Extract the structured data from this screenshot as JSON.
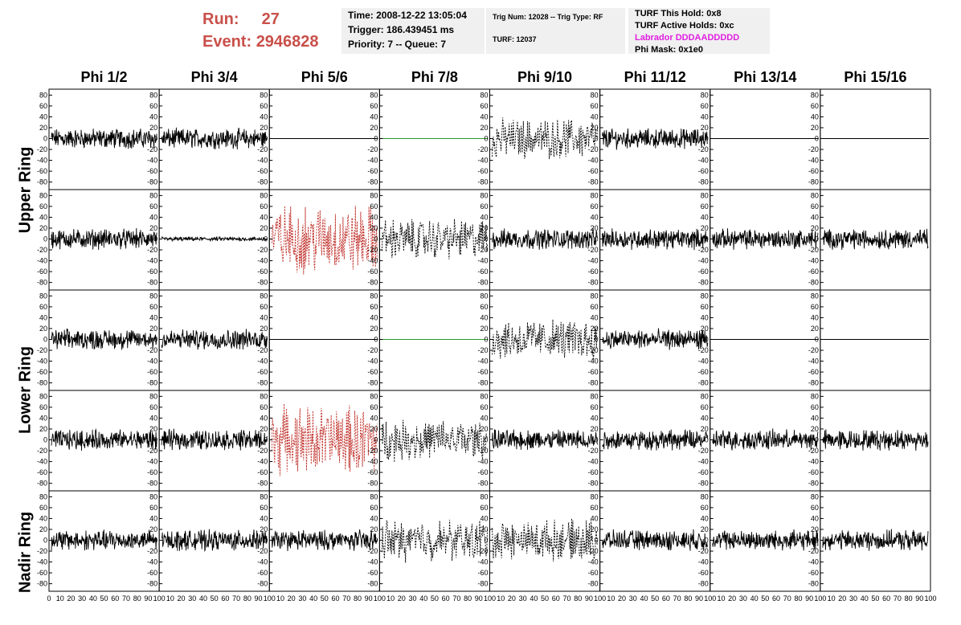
{
  "header": {
    "run_label": "Run:",
    "run_value": "27",
    "event_label": "Event:",
    "event_value": "2946828"
  },
  "info1": {
    "time": "Time: 2008-12-22 13:05:04",
    "trigger": "Trigger: 186.439451 ms",
    "priority": "Priority: 7 -- Queue: 7"
  },
  "info2": {
    "trig": "Trig Num: 12028 -- Trig Type: RF",
    "turf": "TURF: 12037"
  },
  "info3": {
    "hold": "TURF This Hold: 0x8",
    "active": "TURF Active Holds: 0xc",
    "labrador": "Labrador DDDAADDDDD",
    "phimask": "Phi Mask: 0x1e0"
  },
  "columns": [
    "Phi 1/2",
    "Phi 3/4",
    "Phi 5/6",
    "Phi 7/8",
    "Phi 9/10",
    "Phi 11/12",
    "Phi 13/14",
    "Phi 15/16"
  ],
  "rings": [
    "Upper Ring",
    "Lower Ring",
    "Nadir Ring"
  ],
  "colors": {
    "header_red": "#c9504a",
    "trace_black": "#000000",
    "trace_red": "#c0302a",
    "flat_green": "#2a9a2a",
    "labrador_magenta": "#e020e0"
  },
  "chart_data": {
    "type": "line",
    "ylim": [
      -85,
      85
    ],
    "xlim": [
      0,
      100
    ],
    "y_ticks": [
      80,
      60,
      40,
      20,
      0,
      -20,
      -40,
      -60,
      -80
    ],
    "x_ticks": [
      0,
      10,
      20,
      30,
      40,
      50,
      60,
      70,
      80,
      90,
      100
    ],
    "grid": false,
    "rows": 5,
    "cols": 8,
    "panels": [
      [
        "noise",
        "noise",
        "flat",
        "flat-green",
        "dotted",
        "noise",
        "flat",
        "flat"
      ],
      [
        "noise",
        "small",
        "red",
        "dotted",
        "noise",
        "noise",
        "noise",
        "noise"
      ],
      [
        "noise",
        "noise",
        "flat",
        "flat-green",
        "dotted",
        "noise",
        "flat",
        "flat"
      ],
      [
        "noise",
        "noise",
        "red",
        "dotted",
        "noise",
        "noise",
        "noise",
        "noise"
      ],
      [
        "noise",
        "noise",
        "noise",
        "dotted",
        "dotted",
        "noise",
        "noise",
        "noise"
      ]
    ]
  }
}
